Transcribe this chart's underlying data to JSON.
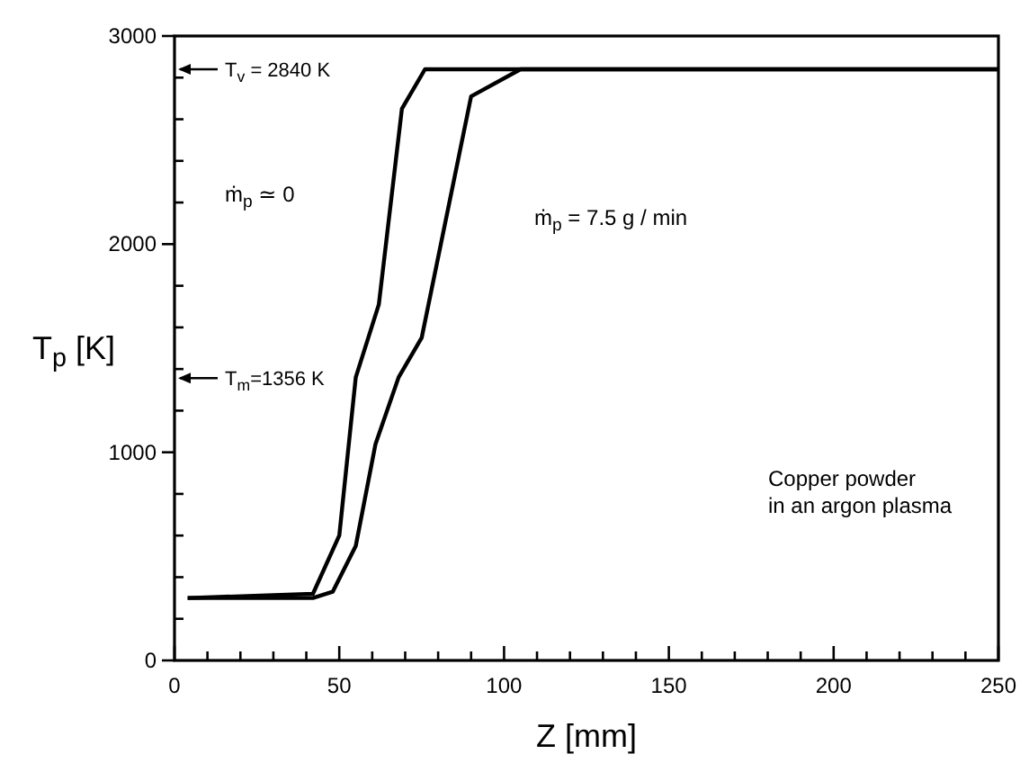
{
  "chart_data": {
    "type": "line",
    "xlabel": "Z [mm]",
    "ylabel": "T$_{p}$ [K]",
    "xlim": [
      0,
      250
    ],
    "ylim": [
      0,
      3000
    ],
    "xticks": [
      0,
      {
        "value": 10,
        "label": null
      },
      {
        "value": 20,
        "label": null
      },
      {
        "value": 30,
        "label": null
      },
      {
        "value": 40,
        "label": null
      },
      50,
      {
        "value": 60,
        "label": null
      },
      {
        "value": 70,
        "label": null
      },
      {
        "value": 80,
        "label": null
      },
      {
        "value": 90,
        "label": null
      },
      100,
      {
        "value": 110,
        "label": null
      },
      {
        "value": 120,
        "label": null
      },
      {
        "value": 130,
        "label": null
      },
      {
        "value": 140,
        "label": null
      },
      150,
      {
        "value": 160,
        "label": null
      },
      {
        "value": 170,
        "label": null
      },
      {
        "value": 180,
        "label": null
      },
      {
        "value": 190,
        "label": null
      },
      200,
      {
        "value": 210,
        "label": null
      },
      {
        "value": 220,
        "label": null
      },
      {
        "value": 230,
        "label": null
      },
      {
        "value": 240,
        "label": null
      },
      250
    ],
    "yticks": [
      0,
      {
        "value": 200,
        "label": null
      },
      {
        "value": 400,
        "label": null
      },
      {
        "value": 600,
        "label": null
      },
      {
        "value": 800,
        "label": null
      },
      1000,
      {
        "value": 1200,
        "label": null
      },
      {
        "value": 1400,
        "label": null
      },
      {
        "value": 1600,
        "label": null
      },
      {
        "value": 1800,
        "label": null
      },
      2000,
      {
        "value": 2200,
        "label": null
      },
      {
        "value": 2400,
        "label": null
      },
      {
        "value": 2600,
        "label": null
      },
      {
        "value": 2800,
        "label": null
      },
      3000
    ],
    "grid": false,
    "marker": "none",
    "line_style": "solid",
    "series": [
      {
        "color": "#000000",
        "x": [
          4,
          42,
          50,
          55,
          62,
          69,
          76,
          250
        ],
        "values": [
          300,
          320,
          600,
          1360,
          1710,
          2650,
          2840,
          2840
        ]
      },
      {
        "color": "#000000",
        "x": [
          4,
          42,
          48,
          55,
          61,
          68,
          75,
          90,
          105,
          250
        ],
        "values": [
          300,
          300,
          330,
          550,
          1040,
          1360,
          1550,
          2710,
          2840,
          2840
        ]
      }
    ],
    "ref_lines": [
      {
        "axis": "y",
        "value": 2840,
        "label": "T$_{v}$ = 2840 K"
      },
      {
        "axis": "y",
        "value": 1356,
        "label": "T$_{m}$=1356 K"
      }
    ],
    "annotations": [
      "ṁ$_{p}$ ≃ 0",
      "ṁ$_{p}$ = 7.5 g / min",
      "Copper powder\nin an argon plasma"
    ]
  }
}
